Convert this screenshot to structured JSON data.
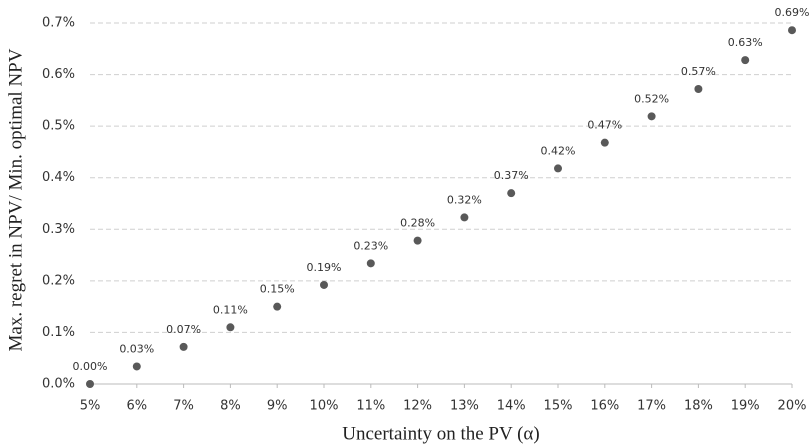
{
  "chart_data": {
    "type": "scatter",
    "x_label": "Uncertainty on the PV (α)",
    "y_label": "Max. regret in NPV/ Min. optimal NPV",
    "x": [
      5,
      6,
      7,
      8,
      9,
      10,
      11,
      12,
      13,
      14,
      15,
      16,
      17,
      18,
      19,
      20
    ],
    "series": [
      {
        "color": "#595959",
        "values": [
          0,
          0.034,
          0.072,
          0.11,
          0.15,
          0.192,
          0.234,
          0.278,
          0.323,
          0.37,
          0.418,
          0.468,
          0.519,
          0.572,
          0.628,
          0.686
        ],
        "value_labels": [
          "0.00%",
          "0.03%",
          "0.07%",
          "0.11%",
          "0.15%",
          "0.19%",
          "0.23%",
          "0.28%",
          "0.32%",
          "0.37%",
          "0.42%",
          "0.47%",
          "0.52%",
          "0.57%",
          "0.63%",
          "0.69%"
        ]
      }
    ],
    "xlim": [
      5,
      20
    ],
    "xticks": [
      {
        "value": 5,
        "label": "5%"
      },
      {
        "value": 6,
        "label": "6%"
      },
      {
        "value": 7,
        "label": "7%"
      },
      {
        "value": 8,
        "label": "8%"
      },
      {
        "value": 9,
        "label": "9%"
      },
      {
        "value": 10,
        "label": "10%"
      },
      {
        "value": 11,
        "label": "11%"
      },
      {
        "value": 12,
        "label": "12%"
      },
      {
        "value": 13,
        "label": "13%"
      },
      {
        "value": 14,
        "label": "14%"
      },
      {
        "value": 15,
        "label": "15%"
      },
      {
        "value": 16,
        "label": "16%"
      },
      {
        "value": 17,
        "label": "17%"
      },
      {
        "value": 18,
        "label": "18%"
      },
      {
        "value": 19,
        "label": "19%"
      },
      {
        "value": 20,
        "label": "20%"
      }
    ],
    "ylim": [
      0,
      0.7
    ],
    "yticks": [
      {
        "value": 0,
        "label": "0.0%"
      },
      {
        "value": 0.1,
        "label": "0.1%"
      },
      {
        "value": 0.2,
        "label": "0.2%"
      },
      {
        "value": 0.3,
        "label": "0.3%"
      },
      {
        "value": 0.4,
        "label": "0.4%"
      },
      {
        "value": 0.5,
        "label": "0.5%"
      },
      {
        "value": 0.6,
        "label": "0.6%"
      },
      {
        "value": 0.7,
        "label": "0.7%"
      }
    ],
    "grid": true
  }
}
